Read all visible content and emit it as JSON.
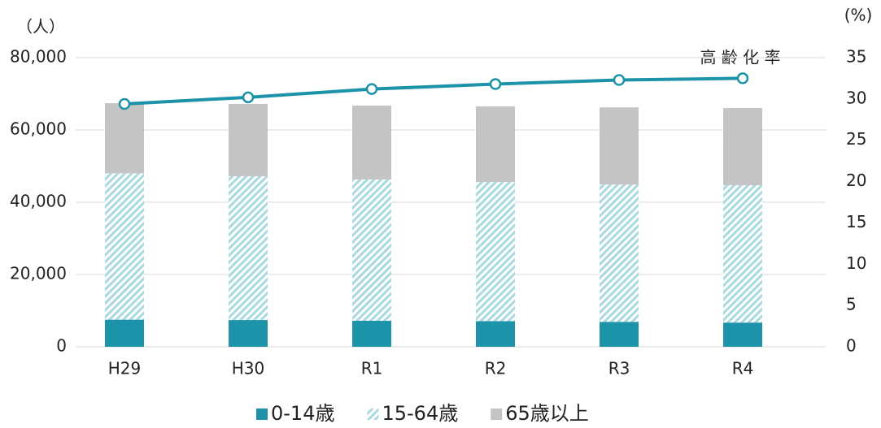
{
  "chart_data": {
    "type": "bar",
    "categories": [
      "H29",
      "H30",
      "R1",
      "R2",
      "R3",
      "R4"
    ],
    "y_unit_label": "（人）",
    "y2_unit_label": "(%)",
    "annotation": "高 齢 化 率",
    "ylim": [
      0,
      80000
    ],
    "yticks": [
      0,
      {
        "value": 20000,
        "label": "20,000"
      },
      {
        "value": 40000,
        "label": "40,000"
      },
      {
        "value": 60000,
        "label": "60,000"
      },
      {
        "value": 80000,
        "label": "80,000"
      }
    ],
    "y2lim": [
      0,
      35
    ],
    "y2ticks": [
      0,
      5,
      10,
      15,
      20,
      25,
      30,
      35
    ],
    "grid": true,
    "legend": "bottom",
    "series": [
      {
        "name": "0-14歳",
        "color": "#1c93a8",
        "style": "solid",
        "values": [
          7500,
          7400,
          7200,
          7100,
          6900,
          6700
        ]
      },
      {
        "name": "15-64歳",
        "color": "#a8d8e0",
        "style": "hatch",
        "values": [
          40500,
          39800,
          39100,
          38500,
          38000,
          38000
        ]
      },
      {
        "name": "65歳以上",
        "color": "#c4c4c4",
        "style": "solid",
        "values": [
          19400,
          20000,
          20450,
          20900,
          21350,
          21350
        ]
      },
      {
        "name": "高齢化率",
        "type": "line",
        "axis": "y2",
        "color": "#1c93a8",
        "values": [
          29.4,
          30.2,
          31.2,
          31.8,
          32.3,
          32.5
        ]
      }
    ]
  }
}
